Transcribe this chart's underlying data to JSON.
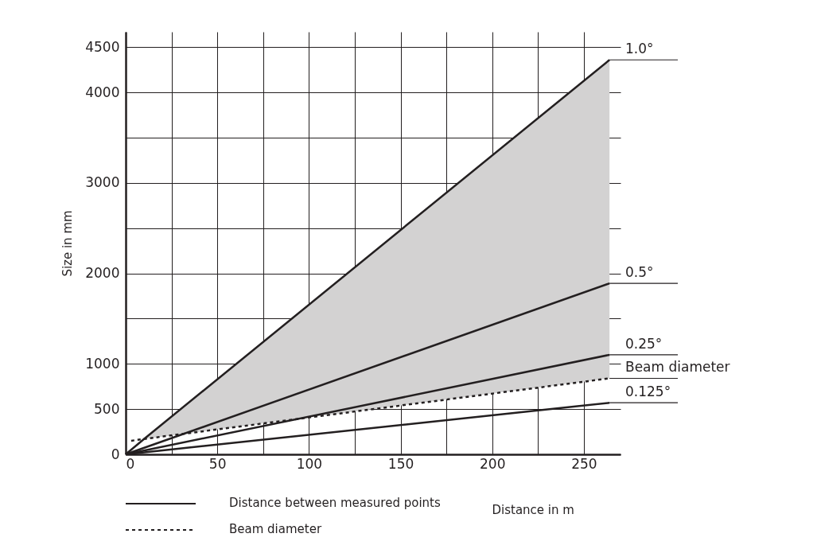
{
  "chart_data": {
    "type": "line",
    "xlabel": "Distance in m",
    "ylabel": "Size in mm",
    "xlim": [
      0,
      270
    ],
    "ylim": [
      0,
      4670
    ],
    "xticks": [
      0,
      {
        "value": 25,
        "label": null
      },
      50,
      {
        "value": 75,
        "label": null
      },
      100,
      {
        "value": 125,
        "label": null
      },
      150,
      {
        "value": 175,
        "label": null
      },
      200,
      {
        "value": 225,
        "label": null
      },
      250
    ],
    "yticks": [
      0,
      500,
      1000,
      {
        "value": 1500,
        "label": null
      },
      2000,
      {
        "value": 2500,
        "label": null
      },
      3000,
      {
        "value": 3500,
        "label": null
      },
      4000,
      4500
    ],
    "grid": true,
    "series": [
      {
        "name": "1.0°",
        "color": "#231f20",
        "line_style": "solid",
        "x": [
          0,
          10,
          264
        ],
        "values": [
          0,
          170,
          4360
        ],
        "lower": [
          null,
          170,
          840
        ],
        "upper": [
          null,
          170,
          4360
        ]
      },
      {
        "name": "0.5°",
        "color": "#231f20",
        "line_style": "solid",
        "x": [
          0,
          264
        ],
        "values": [
          0,
          1890
        ]
      },
      {
        "name": "0.25°",
        "color": "#231f20",
        "line_style": "solid",
        "x": [
          0,
          264
        ],
        "values": [
          0,
          1100
        ]
      },
      {
        "name": "Beam diameter",
        "color": "#231f20",
        "line_style": "dashed",
        "x": [
          3,
          10,
          264
        ],
        "values": [
          150,
          170,
          840
        ]
      },
      {
        "name": "0.125°",
        "color": "#231f20",
        "line_style": "solid",
        "x": [
          0,
          264
        ],
        "values": [
          0,
          570
        ]
      }
    ],
    "annotations": [
      "Distance between measured points",
      "Beam diameter"
    ]
  }
}
